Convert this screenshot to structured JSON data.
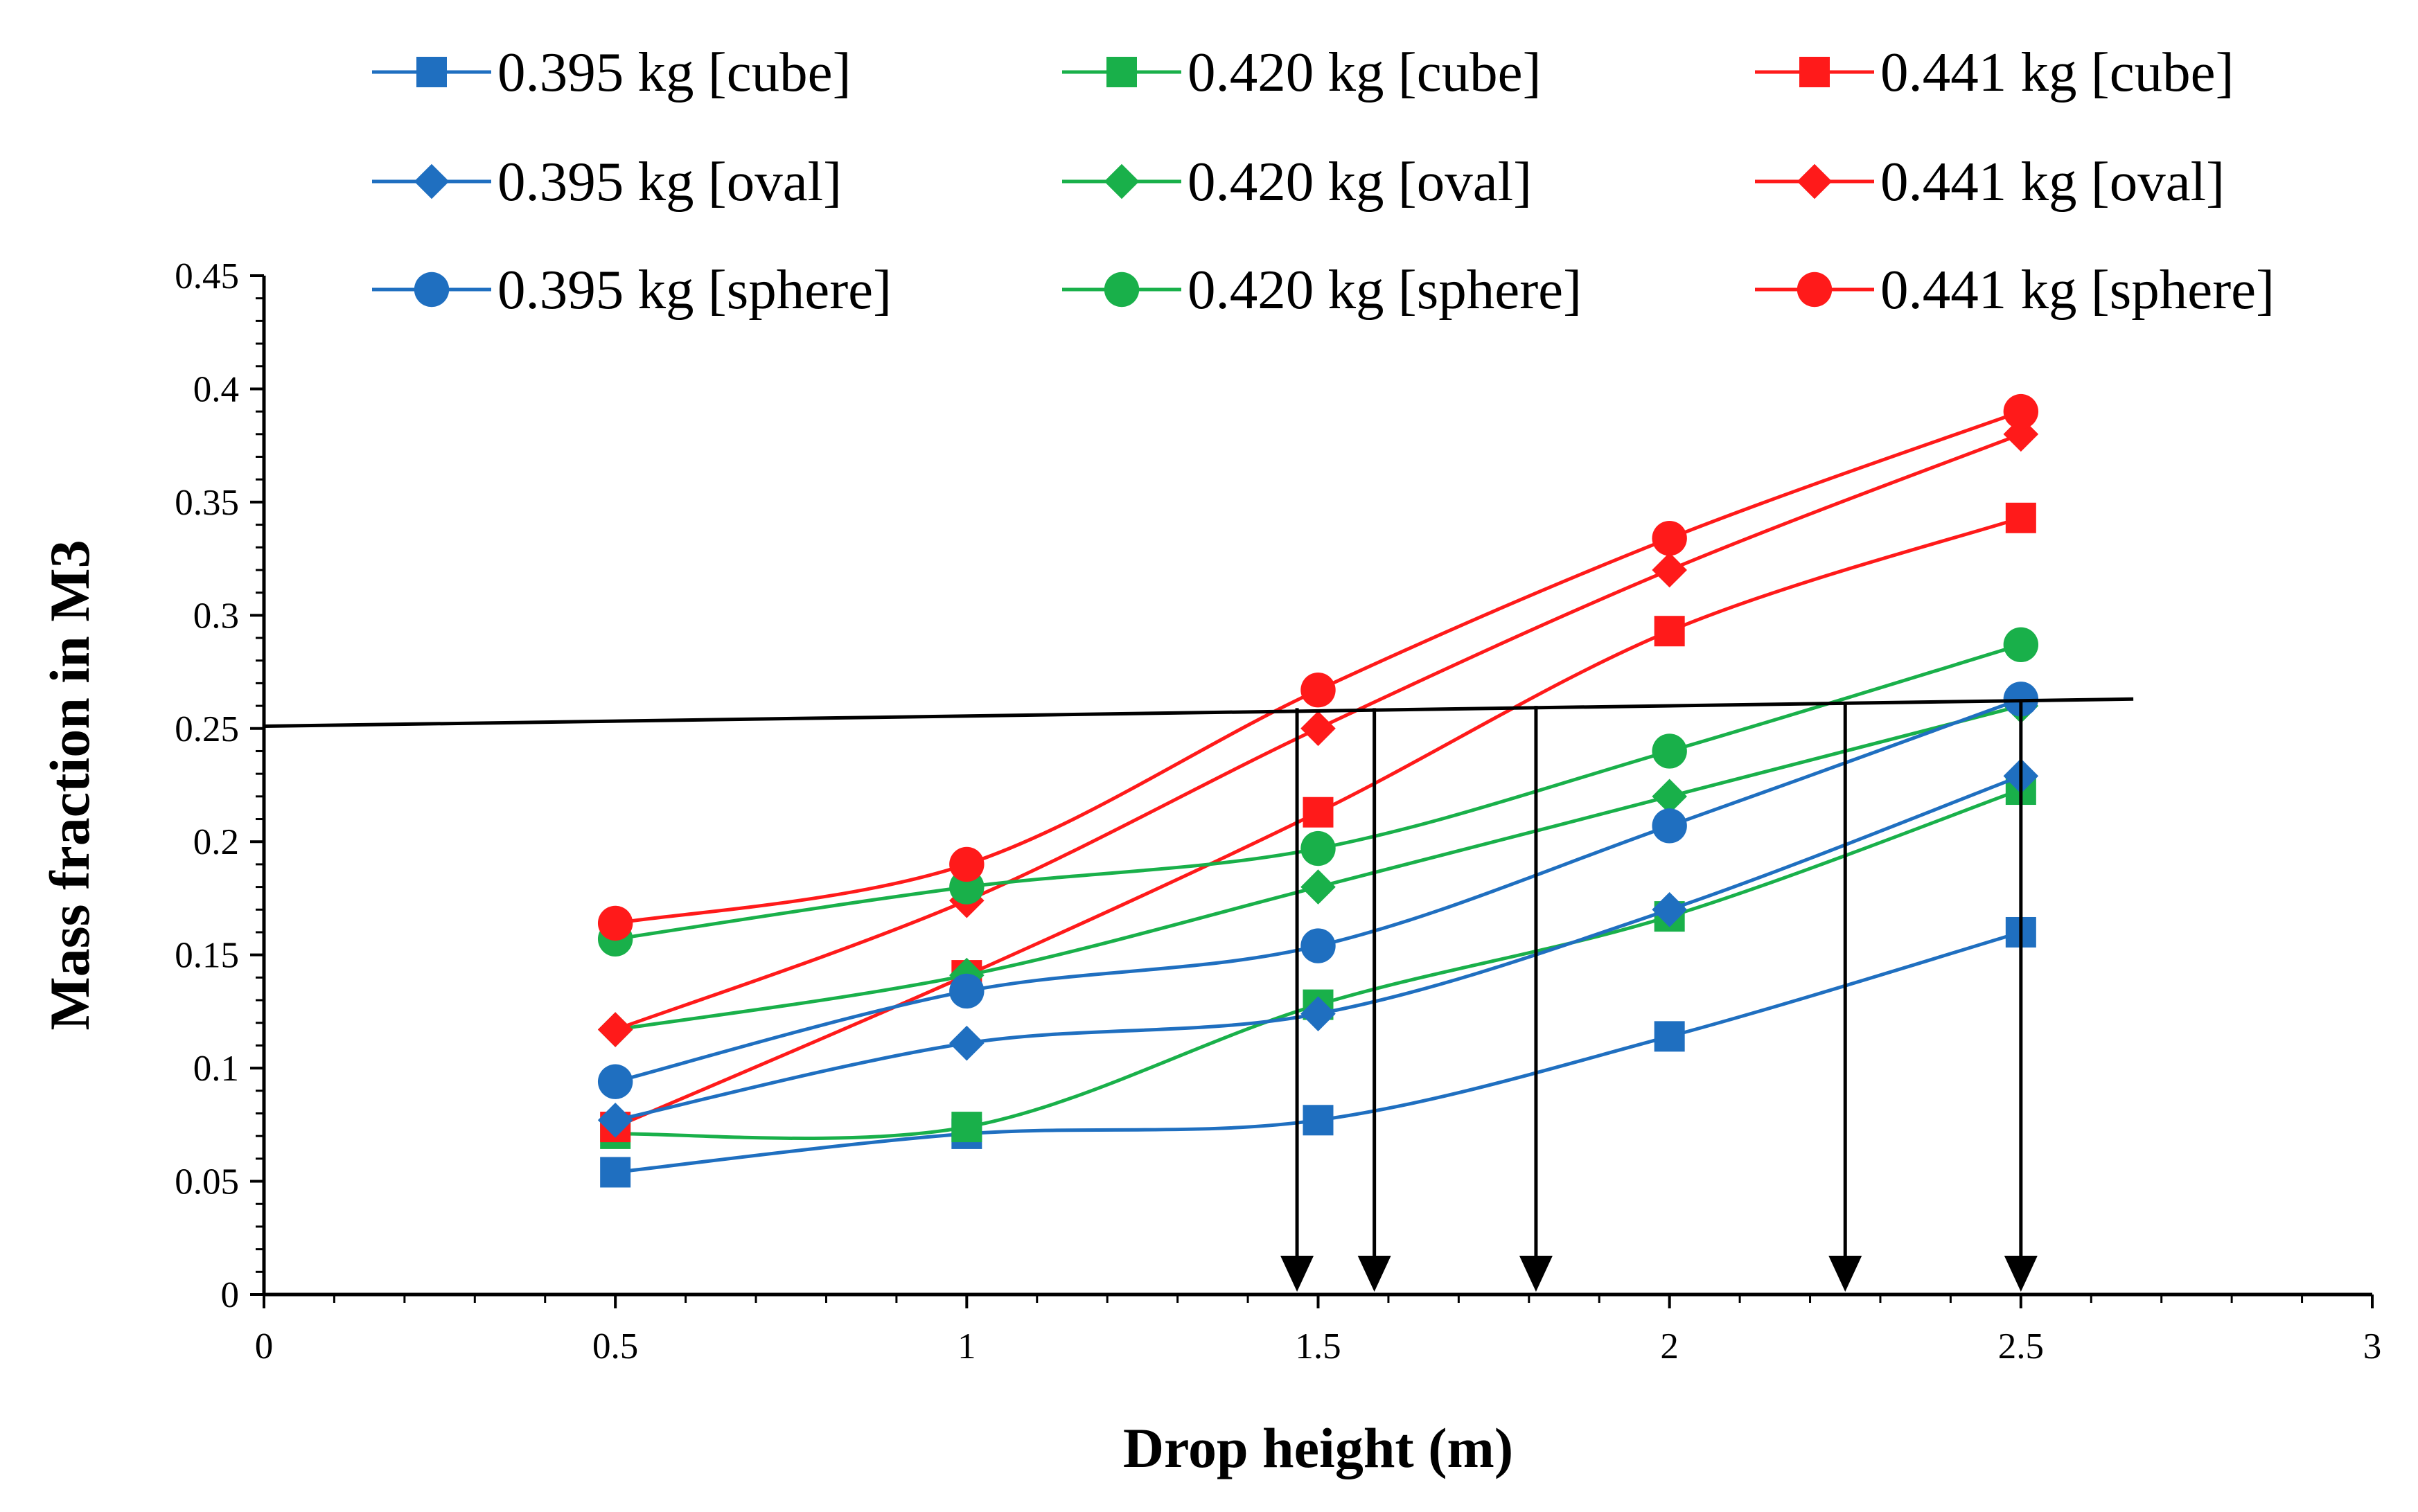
{
  "chart_data": {
    "type": "line",
    "title": "",
    "xlabel": "Drop height (m)",
    "ylabel": "Mass fraction in M3",
    "xlim": [
      0,
      3
    ],
    "ylim": [
      0,
      0.45
    ],
    "x_ticks": [
      0,
      0.5,
      1,
      1.5,
      2,
      2.5,
      3
    ],
    "x_tick_labels": [
      "0",
      "0.5",
      "1",
      "1.5",
      "2",
      "2.5",
      "3"
    ],
    "y_ticks": [
      0,
      0.05,
      0.1,
      0.15,
      0.2,
      0.25,
      0.3,
      0.35,
      0.4,
      0.45
    ],
    "y_tick_labels": [
      "0",
      "0.05",
      "0.1",
      "0.15",
      "0.2",
      "0.25",
      "0.3",
      "0.35",
      "0.4",
      "0.45"
    ],
    "x": [
      0.5,
      1,
      1.5,
      2,
      2.5
    ],
    "colors": {
      "blue": "#1f6fc0",
      "green": "#19b04a",
      "red": "#ff1a1a",
      "green_line_light": "#4caf50"
    },
    "legend_position": "top",
    "series": [
      {
        "name": "0.395 kg [cube]",
        "marker": "square",
        "color": "#1f6fc0",
        "values": [
          0.054,
          0.071,
          0.077,
          0.114,
          0.16
        ]
      },
      {
        "name": "0.420 kg [cube]",
        "marker": "square",
        "color": "#19b04a",
        "values": [
          0.071,
          0.074,
          0.128,
          0.167,
          0.223
        ]
      },
      {
        "name": "0.441 kg [cube]",
        "marker": "square",
        "color": "#ff1a1a",
        "values": [
          0.074,
          0.141,
          0.213,
          0.293,
          0.343
        ]
      },
      {
        "name": "0.395 kg [oval]",
        "marker": "diamond",
        "color": "#1f6fc0",
        "values": [
          0.077,
          0.111,
          0.124,
          0.17,
          0.229
        ]
      },
      {
        "name": "0.420 kg [oval]",
        "marker": "diamond",
        "color": "#19b04a",
        "values": [
          0.117,
          0.141,
          0.18,
          0.22,
          0.26
        ]
      },
      {
        "name": "0.441 kg [oval]",
        "marker": "diamond",
        "color": "#ff1a1a",
        "values": [
          0.117,
          0.174,
          0.25,
          0.32,
          0.38
        ]
      },
      {
        "name": "0.395 kg [sphere]",
        "marker": "circle",
        "color": "#1f6fc0",
        "values": [
          0.094,
          0.134,
          0.154,
          0.207,
          0.263
        ]
      },
      {
        "name": "0.420 kg [sphere]",
        "marker": "circle",
        "color": "#19b04a",
        "values": [
          0.157,
          0.18,
          0.197,
          0.24,
          0.287
        ]
      },
      {
        "name": "0.441 kg [sphere]",
        "marker": "circle",
        "color": "#ff1a1a",
        "values": [
          0.164,
          0.19,
          0.267,
          0.334,
          0.39
        ]
      }
    ],
    "annotations": {
      "threshold_line": {
        "from": [
          0,
          0.251
        ],
        "to": [
          2.66,
          0.263
        ],
        "color": "#000000"
      },
      "drop_arrows": [
        {
          "x": 1.47,
          "y_from": 0.259,
          "y_to": 0.0
        },
        {
          "x": 1.58,
          "y_from": 0.259,
          "y_to": 0.0
        },
        {
          "x": 1.81,
          "y_from": 0.26,
          "y_to": 0.0
        },
        {
          "x": 2.25,
          "y_from": 0.261,
          "y_to": 0.0
        },
        {
          "x": 2.5,
          "y_from": 0.262,
          "y_to": 0.0
        }
      ]
    }
  }
}
